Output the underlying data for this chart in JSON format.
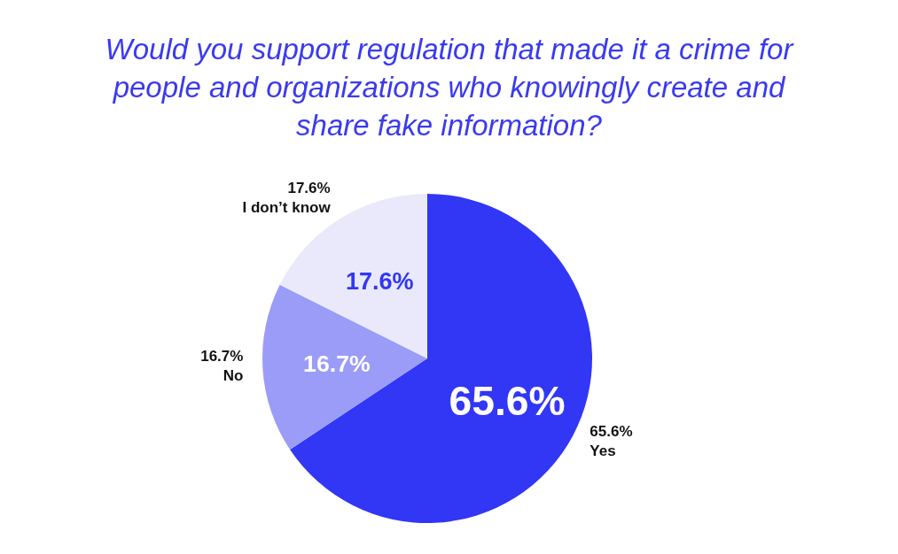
{
  "chart_data": {
    "type": "pie",
    "title": "Would you support regulation that made it a crime for people and organizations who knowingly create and share fake information?",
    "categories": [
      "Yes",
      "No",
      "I don’t know"
    ],
    "values": [
      65.6,
      16.7,
      17.6
    ],
    "value_labels": [
      "65.6%",
      "16.7%",
      "17.6%"
    ],
    "colors": [
      "#3236f5",
      "#9b9cf8",
      "#e9e9fb"
    ],
    "legend": false
  }
}
